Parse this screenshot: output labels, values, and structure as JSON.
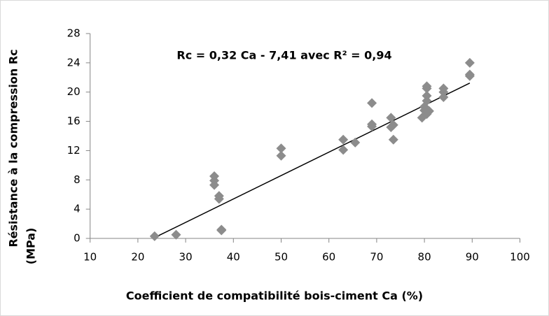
{
  "chart_data": {
    "type": "scatter",
    "annotation": "Rc  =  0,32 Ca - 7,41   avec   R² = 0,94",
    "xlabel": "Coefficient de compatibilité bois-ciment Ca  (%)",
    "ylabel": [
      "Résistance à la compression Rc",
      "(MPa)"
    ],
    "xlim": [
      10,
      100
    ],
    "xticks": [
      10,
      20,
      30,
      40,
      50,
      60,
      70,
      80,
      90,
      100
    ],
    "ylim": [
      0,
      28
    ],
    "yticks": [
      0,
      4,
      8,
      12,
      16,
      20,
      24,
      28
    ],
    "grid": false,
    "series": [
      {
        "color": "#8c8c8c",
        "x": [
          23.5,
          28,
          36,
          36,
          36,
          37,
          37,
          37.5,
          37.5,
          50,
          50,
          63,
          63,
          65.5,
          69,
          69,
          69,
          73,
          73,
          73.5,
          73.5,
          79.5,
          80,
          80,
          80.5,
          80.5,
          80.5,
          80.5,
          80.5,
          81,
          84,
          84,
          84,
          89.5,
          89.5,
          89.5
        ],
        "values": [
          0.3,
          0.5,
          8.5,
          7.9,
          7.3,
          5.8,
          5.4,
          1.2,
          1.1,
          12.3,
          11.3,
          13.5,
          12.1,
          13.1,
          18.5,
          15.6,
          15.3,
          16.5,
          15.2,
          15.5,
          13.5,
          16.5,
          17.5,
          18,
          20.8,
          20.5,
          19.5,
          18.8,
          17,
          17.4,
          20.5,
          20,
          19.3,
          24,
          22.4,
          22.2
        ]
      }
    ],
    "trendline": {
      "color": "#000000",
      "x": [
        23.5,
        89.5
      ],
      "values": [
        0.11,
        21.23
      ]
    }
  }
}
